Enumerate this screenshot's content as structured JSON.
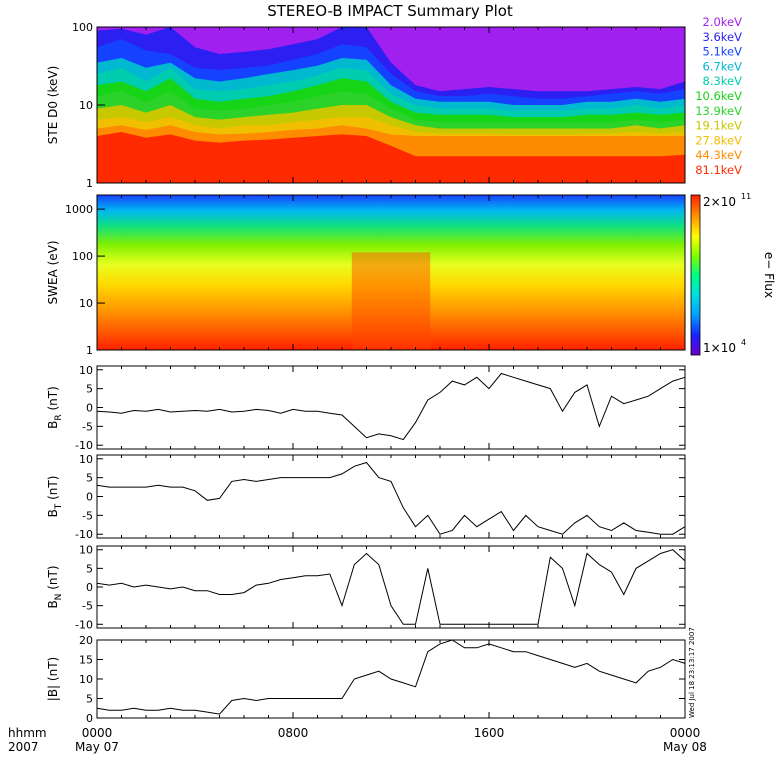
{
  "title": "STEREO-B IMPACT Summary Plot",
  "colors": {
    "energy_channels": [
      "#a020f0",
      "#2b1ff2",
      "#1442ff",
      "#00b8d0",
      "#00ccb0",
      "#16d416",
      "#2ad22a",
      "#c8c800",
      "#f0c000",
      "#ff8c00",
      "#ff2a00"
    ],
    "trace": "#000000",
    "colorbar_stops": [
      "#6a00d0",
      "#1a20ff",
      "#00a0ff",
      "#00e0e0",
      "#00ff80",
      "#80ff00",
      "#ffff00",
      "#ff9000",
      "#ff2000"
    ]
  },
  "stamp_text": "Wed Jul 18 23:13:17 2007",
  "chart_data": [
    {
      "type": "line",
      "name": "ste",
      "ylabel": "STE D0 (keV)",
      "yscale": "log",
      "ylim": [
        1,
        100
      ],
      "yticks": [
        "1",
        "10",
        "100"
      ],
      "series_labels": [
        "2.0keV",
        "3.6keV",
        "5.1keV",
        "6.7keV",
        "8.3keV",
        "10.6keV",
        "13.9keV",
        "19.1keV",
        "27.8keV",
        "44.3keV",
        "81.1keV"
      ],
      "x": [
        0,
        1,
        2,
        3,
        4,
        5,
        6,
        7,
        8,
        9,
        10,
        11,
        12,
        13,
        14,
        15,
        16,
        17,
        18,
        19,
        20,
        21,
        22,
        23,
        24
      ],
      "series": [
        {
          "values": [
            100,
            100,
            100,
            100,
            100,
            100,
            100,
            100,
            100,
            100,
            100,
            100,
            100,
            100,
            100,
            100,
            100,
            100,
            100,
            100,
            100,
            100,
            100,
            100,
            100
          ]
        },
        {
          "values": [
            90,
            95,
            80,
            100,
            55,
            45,
            48,
            52,
            60,
            70,
            100,
            100,
            35,
            18,
            15,
            16,
            17,
            16,
            15,
            15,
            15,
            16,
            17,
            16,
            20
          ]
        },
        {
          "values": [
            55,
            70,
            50,
            45,
            30,
            28,
            30,
            32,
            38,
            45,
            60,
            55,
            25,
            15,
            13,
            13,
            14,
            13,
            12,
            12,
            13,
            14,
            15,
            14,
            16
          ]
        },
        {
          "values": [
            35,
            40,
            30,
            35,
            22,
            20,
            22,
            25,
            28,
            32,
            40,
            38,
            18,
            12,
            11,
            11,
            11,
            10,
            10,
            10,
            11,
            11,
            12,
            11,
            12
          ]
        },
        {
          "values": [
            25,
            30,
            20,
            30,
            16,
            15,
            16,
            18,
            20,
            24,
            30,
            28,
            14,
            10,
            9,
            9,
            9,
            8.5,
            8.5,
            8.5,
            9,
            9,
            10,
            9,
            10
          ]
        },
        {
          "values": [
            18,
            20,
            15,
            22,
            12,
            11,
            12,
            13,
            15,
            18,
            22,
            20,
            11,
            8,
            7.5,
            7.5,
            7.5,
            7,
            7,
            7,
            7.5,
            7.5,
            8,
            7.5,
            8
          ]
        },
        {
          "values": [
            13,
            15,
            11,
            15,
            9,
            8.5,
            9,
            10,
            11,
            13,
            15,
            14,
            9,
            6.5,
            6,
            6,
            6,
            6,
            6,
            6,
            6,
            6,
            6.5,
            6,
            6.5
          ]
        },
        {
          "values": [
            9,
            10,
            8,
            10,
            7,
            6.5,
            7,
            7.5,
            8,
            9,
            10,
            10,
            7,
            5.5,
            5,
            5,
            5,
            5,
            5,
            5,
            5,
            5,
            5.5,
            5,
            5.5
          ]
        },
        {
          "values": [
            6.5,
            7,
            6,
            7,
            5.5,
            5,
            5.5,
            5.5,
            6,
            6.5,
            7,
            7,
            5.5,
            4.5,
            4.3,
            4.3,
            4.3,
            4.2,
            4.2,
            4.2,
            4.3,
            4.3,
            4.5,
            4.3,
            4.5
          ]
        },
        {
          "values": [
            5,
            5.5,
            4.8,
            5.5,
            4.5,
            4.2,
            4.3,
            4.5,
            4.8,
            5,
            5.5,
            5,
            4.2,
            4,
            4,
            4,
            4,
            4,
            4,
            4,
            4,
            4,
            4,
            4,
            4
          ]
        },
        {
          "values": [
            4,
            4.5,
            3.8,
            4.2,
            3.5,
            3.3,
            3.5,
            3.6,
            3.8,
            4,
            4.2,
            4,
            3,
            2.2,
            2.2,
            2.2,
            2.2,
            2.2,
            2.2,
            2.2,
            2.2,
            2.2,
            2.2,
            2.2,
            2.3
          ]
        }
      ]
    },
    {
      "type": "heatmap",
      "name": "swea",
      "ylabel": "SWEA (eV)",
      "yscale": "log",
      "ylim": [
        1,
        2000
      ],
      "yticks": [
        "1",
        "10",
        "100",
        "1000"
      ],
      "colorbar": {
        "label": "e− Flux",
        "max_label": "2×10",
        "max_exp": "11",
        "min_label": "1×10",
        "min_exp": "4"
      }
    },
    {
      "type": "line",
      "name": "br",
      "ylabel": "BR (nT)",
      "ylabel_main": "B",
      "ylabel_sub": "R",
      "ylabel_unit": "(nT)",
      "ylim": [
        -11,
        11
      ],
      "yticks": [
        "-10",
        "-5",
        "0",
        "5",
        "10"
      ],
      "ytick_values": [
        -10,
        -5,
        0,
        5,
        10
      ],
      "x": [
        0,
        0.5,
        1,
        1.5,
        2,
        2.5,
        3,
        3.5,
        4,
        4.5,
        5,
        5.5,
        6,
        6.5,
        7,
        7.5,
        8,
        8.5,
        9,
        9.5,
        10,
        10.5,
        11,
        11.5,
        12,
        12.5,
        13,
        13.5,
        14,
        14.5,
        15,
        15.5,
        16,
        16.5,
        17,
        17.5,
        18,
        18.5,
        19,
        19.5,
        20,
        20.5,
        21,
        21.5,
        22,
        22.5,
        23,
        23.5,
        24
      ],
      "values": [
        -1,
        -1.2,
        -1.5,
        -0.8,
        -1,
        -0.5,
        -1.2,
        -1,
        -0.8,
        -1,
        -0.5,
        -1.2,
        -1,
        -0.5,
        -0.8,
        -1.5,
        -0.5,
        -1,
        -1,
        -1.5,
        -2,
        -5,
        -8,
        -7,
        -7.5,
        -8.5,
        -4,
        2,
        4,
        7,
        6,
        8,
        5,
        9,
        8,
        7,
        6,
        5,
        -1,
        4,
        6,
        -5,
        3,
        1,
        2,
        3,
        5,
        7,
        8
      ]
    },
    {
      "type": "line",
      "name": "bt",
      "ylabel": "BT (nT)",
      "ylabel_main": "B",
      "ylabel_sub": "T",
      "ylabel_unit": "(nT)",
      "ylim": [
        -11,
        11
      ],
      "yticks": [
        "-10",
        "-5",
        "0",
        "5",
        "10"
      ],
      "ytick_values": [
        -10,
        -5,
        0,
        5,
        10
      ],
      "x": [
        0,
        0.5,
        1,
        1.5,
        2,
        2.5,
        3,
        3.5,
        4,
        4.5,
        5,
        5.5,
        6,
        6.5,
        7,
        7.5,
        8,
        8.5,
        9,
        9.5,
        10,
        10.5,
        11,
        11.5,
        12,
        12.5,
        13,
        13.5,
        14,
        14.5,
        15,
        15.5,
        16,
        16.5,
        17,
        17.5,
        18,
        18.5,
        19,
        19.5,
        20,
        20.5,
        21,
        21.5,
        22,
        22.5,
        23,
        23.5,
        24
      ],
      "values": [
        3,
        2.5,
        2.5,
        2.5,
        2.5,
        3,
        2.5,
        2.5,
        1.5,
        -1,
        -0.5,
        4,
        4.5,
        4,
        4.5,
        5,
        5,
        5,
        5,
        5,
        6,
        8,
        9,
        5,
        4,
        -3,
        -8,
        -5,
        -10,
        -9,
        -5,
        -8,
        -6,
        -4,
        -9,
        -5,
        -8,
        -9,
        -10,
        -7,
        -5,
        -8,
        -9,
        -7,
        -9,
        -9.5,
        -10,
        -10,
        -8
      ]
    },
    {
      "type": "line",
      "name": "bn",
      "ylabel": "BN (nT)",
      "ylabel_main": "B",
      "ylabel_sub": "N",
      "ylabel_unit": "(nT)",
      "ylim": [
        -11,
        11
      ],
      "yticks": [
        "-10",
        "-5",
        "0",
        "5",
        "10"
      ],
      "ytick_values": [
        -10,
        -5,
        0,
        5,
        10
      ],
      "x": [
        0,
        0.5,
        1,
        1.5,
        2,
        2.5,
        3,
        3.5,
        4,
        4.5,
        5,
        5.5,
        6,
        6.5,
        7,
        7.5,
        8,
        8.5,
        9,
        9.5,
        10,
        10.5,
        11,
        11.5,
        12,
        12.5,
        13,
        13.5,
        14,
        14.5,
        15,
        15.5,
        16,
        16.5,
        17,
        17.5,
        18,
        18.5,
        19,
        19.5,
        20,
        20.5,
        21,
        21.5,
        22,
        22.5,
        23,
        23.5,
        24
      ],
      "values": [
        1,
        0.5,
        1,
        0,
        0.5,
        0,
        -0.5,
        0,
        -1,
        -1,
        -2,
        -2,
        -1.5,
        0.5,
        1,
        2,
        2.5,
        3,
        3,
        3.5,
        -5,
        6,
        9,
        6,
        -5,
        -10,
        -10,
        5,
        -10,
        -10,
        -10,
        -10,
        -10,
        -10,
        -10,
        -10,
        -10,
        8,
        5,
        -5,
        9,
        6,
        4,
        -2,
        5,
        7,
        9,
        10,
        7
      ]
    },
    {
      "type": "line",
      "name": "bmag",
      "ylabel": "|B| (nT)",
      "ylim": [
        0,
        20
      ],
      "yticks": [
        "0",
        "5",
        "10",
        "15",
        "20"
      ],
      "ytick_values": [
        0,
        5,
        10,
        15,
        20
      ],
      "x": [
        0,
        0.5,
        1,
        1.5,
        2,
        2.5,
        3,
        3.5,
        4,
        4.5,
        5,
        5.5,
        6,
        6.5,
        7,
        7.5,
        8,
        8.5,
        9,
        9.5,
        10,
        10.5,
        11,
        11.5,
        12,
        12.5,
        13,
        13.5,
        14,
        14.5,
        15,
        15.5,
        16,
        16.5,
        17,
        17.5,
        18,
        18.5,
        19,
        19.5,
        20,
        20.5,
        21,
        21.5,
        22,
        22.5,
        23,
        23.5,
        24
      ],
      "values": [
        2.5,
        2,
        2,
        2.5,
        2,
        2,
        2.5,
        2,
        2,
        1.5,
        1,
        4.5,
        5,
        4.5,
        5,
        5,
        5,
        5,
        5,
        5,
        5,
        10,
        11,
        12,
        10,
        9,
        8,
        17,
        19,
        20,
        18,
        18,
        19,
        18,
        17,
        17,
        16,
        15,
        14,
        13,
        14,
        12,
        11,
        10,
        9,
        12,
        13,
        15,
        14
      ]
    }
  ],
  "xaxis": {
    "ticks": [
      "0000",
      "0800",
      "1600",
      "0000"
    ],
    "tick_hours": [
      0,
      8,
      16,
      24
    ],
    "dates": [
      "May 07",
      "",
      "",
      "May 08"
    ],
    "label_hhmm": "hhmm",
    "label_year": "2007"
  }
}
